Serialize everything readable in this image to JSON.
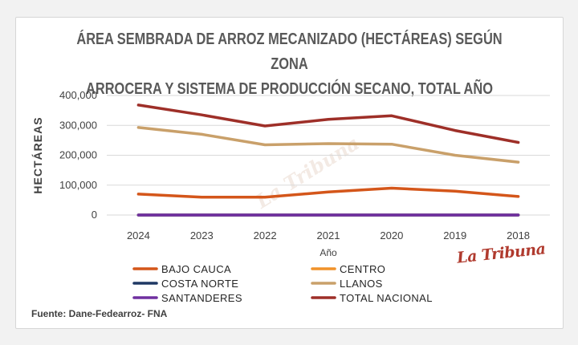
{
  "chart_data": {
    "type": "line",
    "title_line1": "ÁREA SEMBRADA DE ARROZ MECANIZADO (HECTÁREAS)  SEGÚN ZONA",
    "title_line2": "ARROCERA Y SISTEMA DE PRODUCCIÓN SECANO, TOTAL AÑO",
    "xlabel": "Año",
    "ylabel": "HECTÁREAS",
    "ylim": [
      0,
      400000
    ],
    "yticks": [
      "0",
      "100,000",
      "200,000",
      "300,000",
      "400,000"
    ],
    "categories": [
      "2024",
      "2023",
      "2022",
      "2021",
      "2020",
      "2019",
      "2018"
    ],
    "grid": true,
    "legend_position": "bottom",
    "series": [
      {
        "name": "BAJO CAUCA",
        "color": "#d4561a",
        "values": [
          70000,
          60000,
          60000,
          77000,
          90000,
          80000,
          62000
        ]
      },
      {
        "name": "CENTRO",
        "color": "#f0922a",
        "values": [
          0,
          0,
          0,
          0,
          0,
          0,
          0
        ]
      },
      {
        "name": "COSTA NORTE",
        "color": "#1f3864",
        "values": [
          0,
          0,
          0,
          0,
          0,
          0,
          0
        ]
      },
      {
        "name": "LLANOS",
        "color": "#c9a06a",
        "values": [
          293000,
          270000,
          235000,
          239000,
          237000,
          200000,
          177000
        ]
      },
      {
        "name": "SANTANDERES",
        "color": "#7030a0",
        "values": [
          0,
          0,
          0,
          0,
          0,
          0,
          0
        ]
      },
      {
        "name": "TOTAL NACIONAL",
        "color": "#9e2f28",
        "values": [
          368000,
          335000,
          298000,
          320000,
          332000,
          283000,
          243000
        ]
      }
    ],
    "draw_order": [
      1,
      2,
      4,
      0,
      3,
      5
    ]
  },
  "source": "Fuente: Dane-Fedearroz- FNA",
  "logo_text": "La Tribuna",
  "watermark_text": "La Tribuna"
}
